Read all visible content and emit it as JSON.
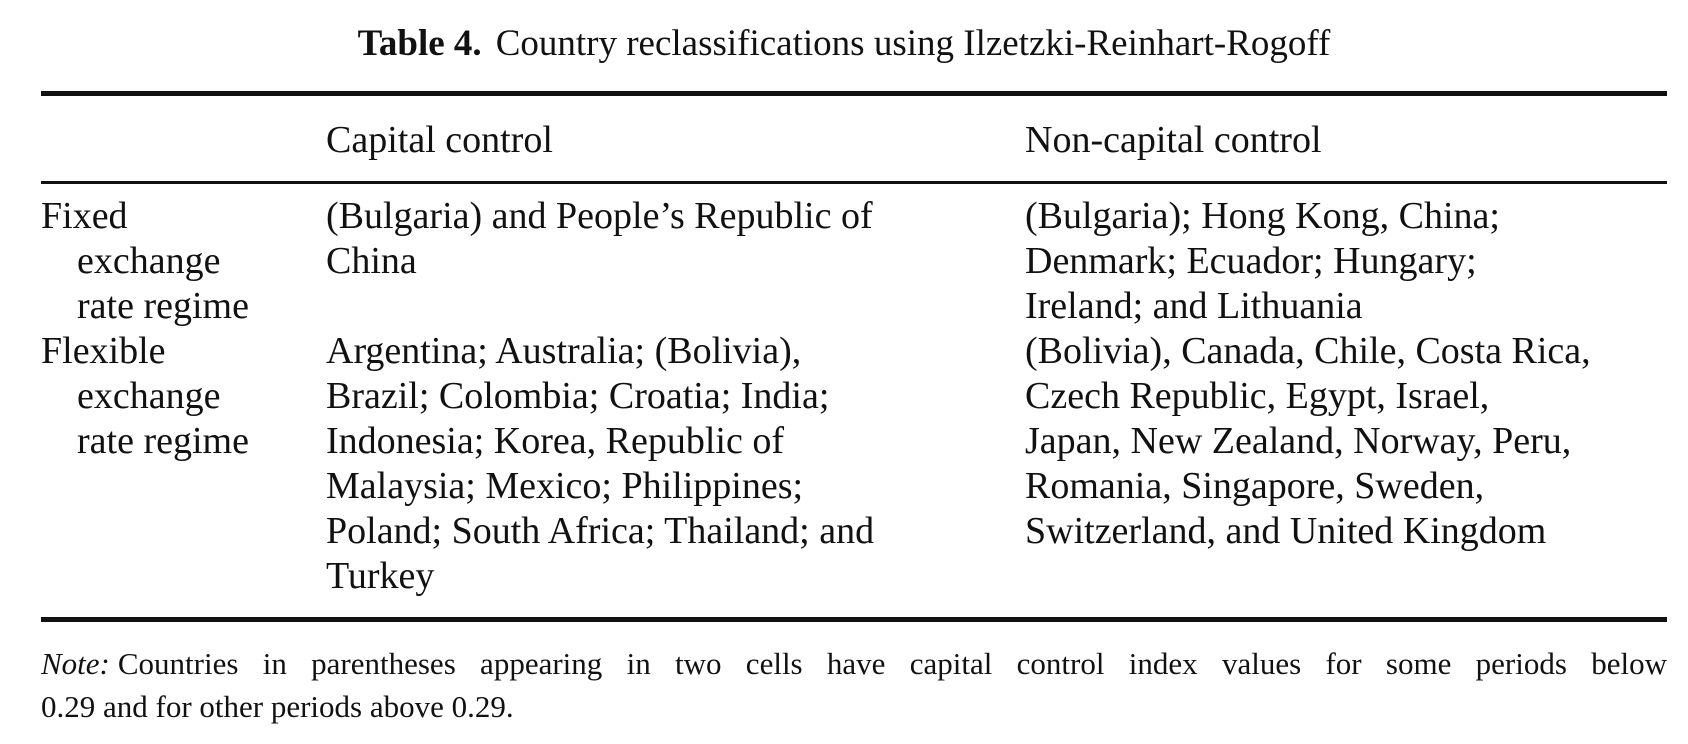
{
  "caption": {
    "label": "Table 4.",
    "title": "Country reclassifications using Ilzetzki-Reinhart-Rogoff"
  },
  "table": {
    "headers": [
      "",
      "Capital control",
      "Non-capital control"
    ],
    "rows": [
      {
        "stub": [
          "Fixed",
          "exchange",
          "rate regime"
        ],
        "capital_control": [
          "(Bulgaria) and People’s Republic of",
          "China"
        ],
        "non_capital_control": [
          "(Bulgaria); Hong Kong, China;",
          "Denmark; Ecuador; Hungary;",
          "Ireland; and Lithuania"
        ]
      },
      {
        "stub": [
          "Flexible",
          "exchange",
          "rate regime"
        ],
        "capital_control": [
          "Argentina; Australia; (Bolivia),",
          "Brazil; Colombia; Croatia; India;",
          "Indonesia; Korea, Republic of",
          "Malaysia; Mexico; Philippines;",
          "Poland; South Africa; Thailand; and",
          "Turkey"
        ],
        "non_capital_control": [
          "(Bolivia), Canada, Chile, Costa Rica,",
          "Czech Republic, Egypt, Israel,",
          "Japan, New Zealand, Norway, Peru,",
          "Romania, Singapore, Sweden,",
          "Switzerland, and United Kingdom"
        ]
      }
    ]
  },
  "note": {
    "label": "Note:",
    "line1": "Countries in parentheses appearing in two cells have capital control index values for some periods below",
    "line2": "0.29 and for other periods above 0.29."
  }
}
